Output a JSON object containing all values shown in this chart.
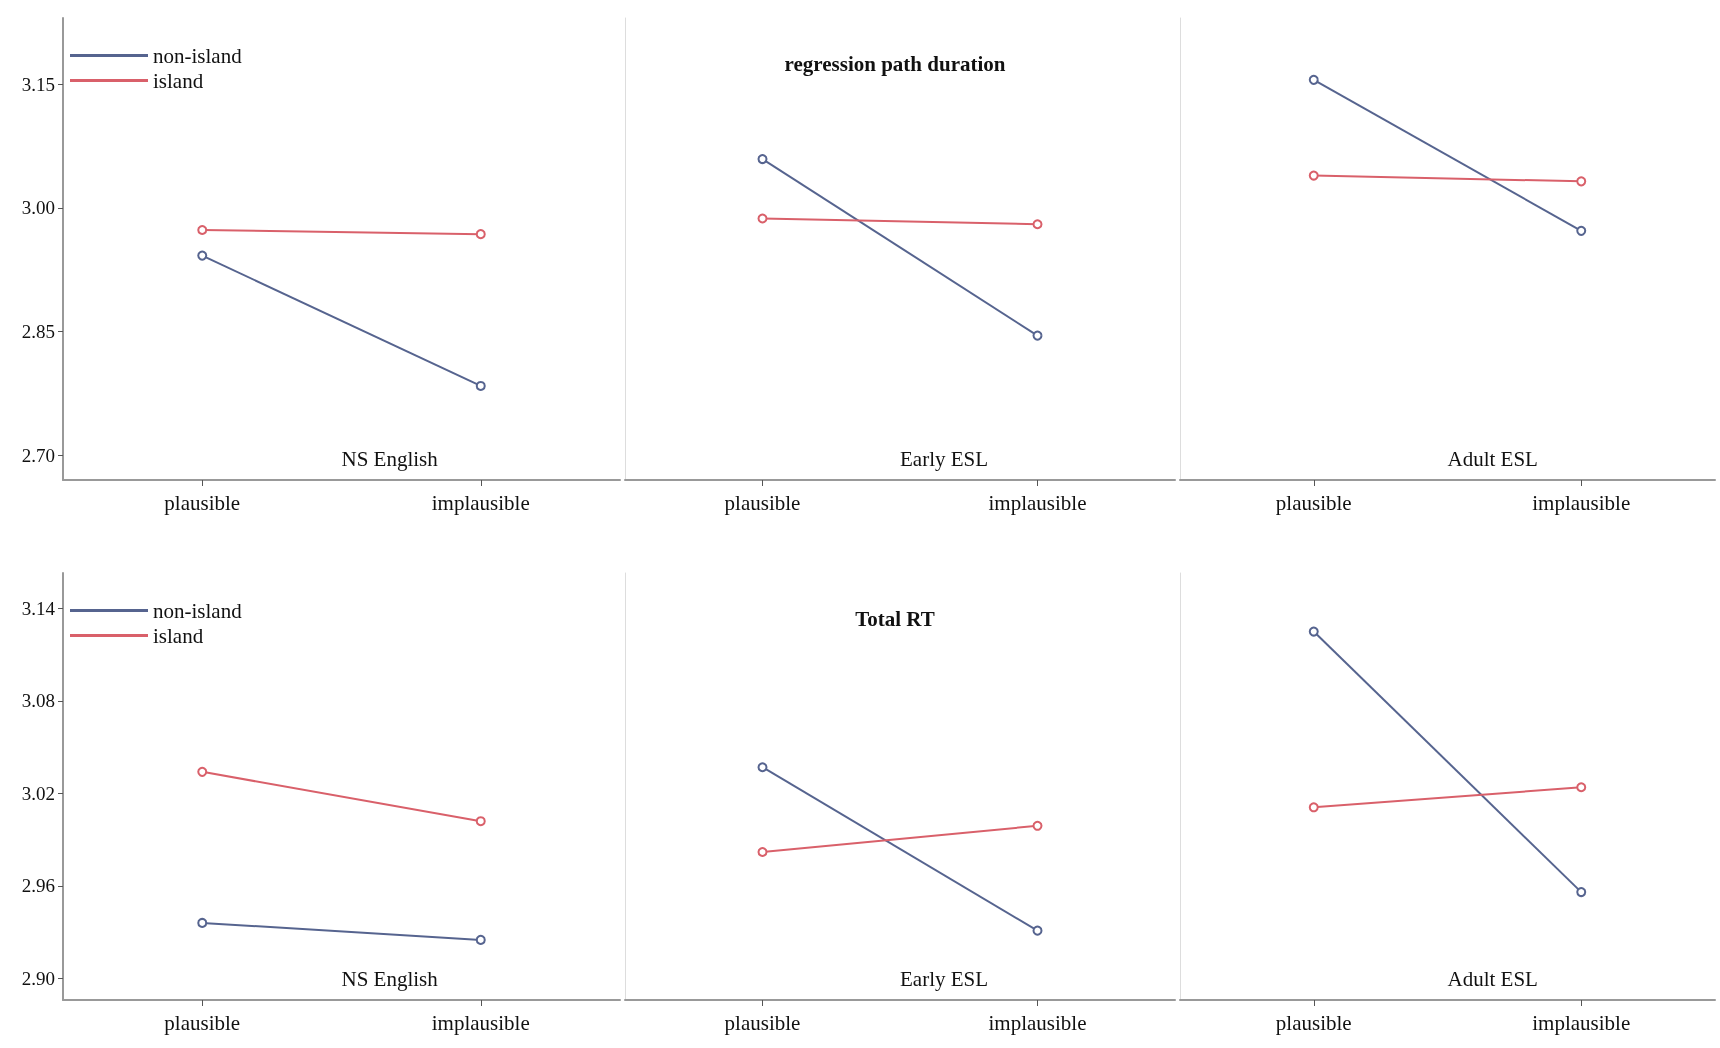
{
  "chart_data": [
    {
      "type": "line",
      "categories": [
        "plausible",
        "implausible"
      ],
      "ylim": [
        2.67,
        3.23
      ],
      "yticks": [
        {
          "value": 2.7,
          "label": "2.70"
        },
        2.85,
        {
          "value": 3.0,
          "label": "3.00"
        },
        3.15
      ],
      "tick_labels": "xy",
      "legend": "top left",
      "marker": "circle",
      "annotations": [
        "NS English"
      ],
      "series": [
        {
          "name": "non-island",
          "color": "#56648f",
          "values": [
            2.942,
            2.784
          ]
        },
        {
          "name": "island",
          "color": "#d9606a",
          "values": [
            2.973,
            2.968
          ]
        }
      ]
    },
    {
      "type": "line",
      "title": "regression path duration",
      "categories": [
        "plausible",
        "implausible"
      ],
      "ylim": [
        2.67,
        3.23
      ],
      "tick_labels": "x",
      "marker": "circle",
      "annotations": [
        "Early ESL"
      ],
      "series": [
        {
          "color": "#56648f",
          "values": [
            3.059,
            2.845
          ]
        },
        {
          "color": "#d9606a",
          "values": [
            2.987,
            2.98
          ]
        }
      ]
    },
    {
      "type": "line",
      "categories": [
        "plausible",
        "implausible"
      ],
      "ylim": [
        2.67,
        3.23
      ],
      "tick_labels": "x",
      "marker": "circle",
      "annotations": [
        "Adult ESL"
      ],
      "series": [
        {
          "color": "#56648f",
          "values": [
            3.155,
            2.972
          ]
        },
        {
          "color": "#d9606a",
          "values": [
            3.039,
            3.032
          ]
        }
      ]
    },
    {
      "type": "line",
      "categories": [
        "plausible",
        "implausible"
      ],
      "ylim": [
        2.886,
        3.163
      ],
      "yticks": [
        {
          "value": 2.9,
          "label": "2.90"
        },
        2.96,
        3.02,
        3.08,
        3.14
      ],
      "tick_labels": "xy",
      "legend": "top left",
      "marker": "circle",
      "annotations": [
        "NS English"
      ],
      "series": [
        {
          "name": "non-island",
          "color": "#56648f",
          "values": [
            2.936,
            2.925
          ]
        },
        {
          "name": "island",
          "color": "#d9606a",
          "values": [
            3.034,
            3.002
          ]
        }
      ]
    },
    {
      "type": "line",
      "title": "Total RT",
      "categories": [
        "plausible",
        "implausible"
      ],
      "ylim": [
        2.886,
        3.163
      ],
      "tick_labels": "x",
      "marker": "circle",
      "annotations": [
        "Early ESL"
      ],
      "series": [
        {
          "color": "#56648f",
          "values": [
            3.037,
            2.931
          ]
        },
        {
          "color": "#d9606a",
          "values": [
            2.982,
            2.999
          ]
        }
      ]
    },
    {
      "type": "line",
      "categories": [
        "plausible",
        "implausible"
      ],
      "ylim": [
        2.886,
        3.163
      ],
      "tick_labels": "x",
      "marker": "circle",
      "annotations": [
        "Adult ESL"
      ],
      "series": [
        {
          "color": "#56648f",
          "values": [
            3.125,
            2.956
          ]
        },
        {
          "color": "#d9606a",
          "values": [
            3.011,
            3.024
          ]
        }
      ]
    }
  ]
}
